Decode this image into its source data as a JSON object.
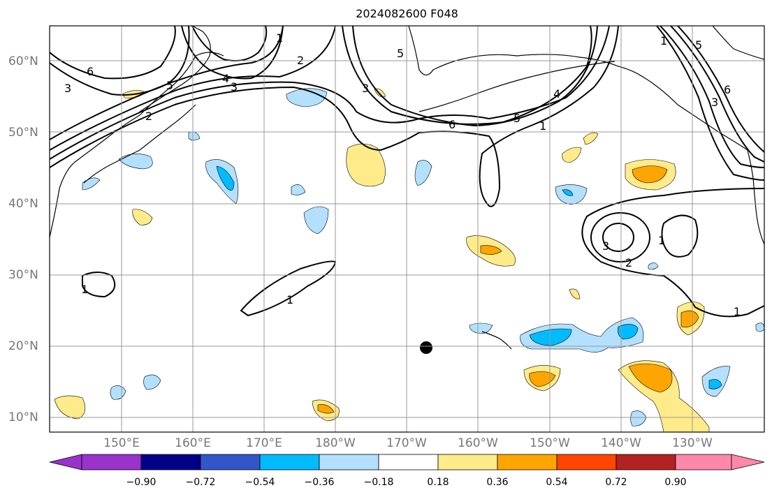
{
  "title": "2024082600 F048",
  "map": {
    "projection": "PlateCarree",
    "lon_range": [
      140,
      240
    ],
    "lat_range": [
      8,
      65
    ],
    "gridlines": true,
    "lat_labels": [
      "10°N",
      "20°N",
      "30°N",
      "40°N",
      "50°N",
      "60°N"
    ],
    "lon_labels": [
      "150°E",
      "160°E",
      "170°E",
      "180°W",
      "170°W",
      "160°W",
      "150°W",
      "140°W",
      "130°W"
    ],
    "contour_labels": [
      "1",
      "2",
      "3",
      "4",
      "5",
      "6"
    ],
    "marker": {
      "lon": -167.5,
      "lat": 19.8,
      "shape": "filled-circle",
      "color": "#000000"
    }
  },
  "colorbar": {
    "orientation": "horizontal",
    "extend": "both",
    "ticks": [
      "−0.90",
      "−0.72",
      "−0.54",
      "−0.36",
      "−0.18",
      "0.18",
      "0.36",
      "0.54",
      "0.72",
      "0.90"
    ],
    "colors": [
      "#9933cc",
      "#000088",
      "#3355cc",
      "#00bbff",
      "#b3e0ff",
      "#ffffff",
      "#ffeb8a",
      "#ffa500",
      "#ff4500",
      "#b22222",
      "#ff88aa"
    ]
  }
}
